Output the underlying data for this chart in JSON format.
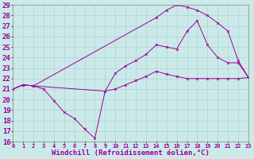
{
  "xlabel": "Windchill (Refroidissement éolien,°C)",
  "xlim": [
    0,
    23
  ],
  "ylim": [
    16,
    29
  ],
  "yticks": [
    16,
    17,
    18,
    19,
    20,
    21,
    22,
    23,
    24,
    25,
    26,
    27,
    28,
    29
  ],
  "xticks": [
    0,
    1,
    2,
    3,
    4,
    5,
    6,
    7,
    8,
    9,
    10,
    11,
    12,
    13,
    14,
    15,
    16,
    17,
    18,
    19,
    20,
    21,
    22,
    23
  ],
  "bg_color": "#cce9e9",
  "line_color": "#990099",
  "grid_color": "#aad4d4",
  "line1_x": [
    0,
    1,
    2,
    3,
    4,
    5,
    6,
    7,
    8,
    9,
    10,
    11,
    12,
    13,
    14,
    15,
    16,
    17,
    18,
    19,
    20,
    21,
    22,
    23
  ],
  "line1_y": [
    21.0,
    21.4,
    21.3,
    21.0,
    19.9,
    18.8,
    18.2,
    17.2,
    16.3,
    20.8,
    21.0,
    21.4,
    21.8,
    22.2,
    22.7,
    22.4,
    22.2,
    22.0,
    22.0,
    22.0,
    22.0,
    22.0,
    22.0,
    22.1
  ],
  "line2_x": [
    0,
    1,
    2,
    9,
    10,
    11,
    12,
    13,
    14,
    15,
    16,
    17,
    18,
    19,
    20,
    21,
    22,
    23
  ],
  "line2_y": [
    21.0,
    21.4,
    21.3,
    20.8,
    22.5,
    23.2,
    23.7,
    24.3,
    25.2,
    25.0,
    24.8,
    26.5,
    27.5,
    25.2,
    24.0,
    23.5,
    23.5,
    22.1
  ],
  "line3_x": [
    0,
    1,
    2,
    14,
    15,
    16,
    17,
    18,
    19,
    20,
    21,
    22,
    23
  ],
  "line3_y": [
    21.0,
    21.4,
    21.3,
    27.8,
    28.5,
    29.0,
    28.8,
    28.5,
    28.0,
    27.3,
    26.5,
    23.7,
    22.1
  ],
  "fontsize_xlabel": 6.5,
  "fontsize_ytick": 6.5,
  "fontsize_xtick": 5.0
}
